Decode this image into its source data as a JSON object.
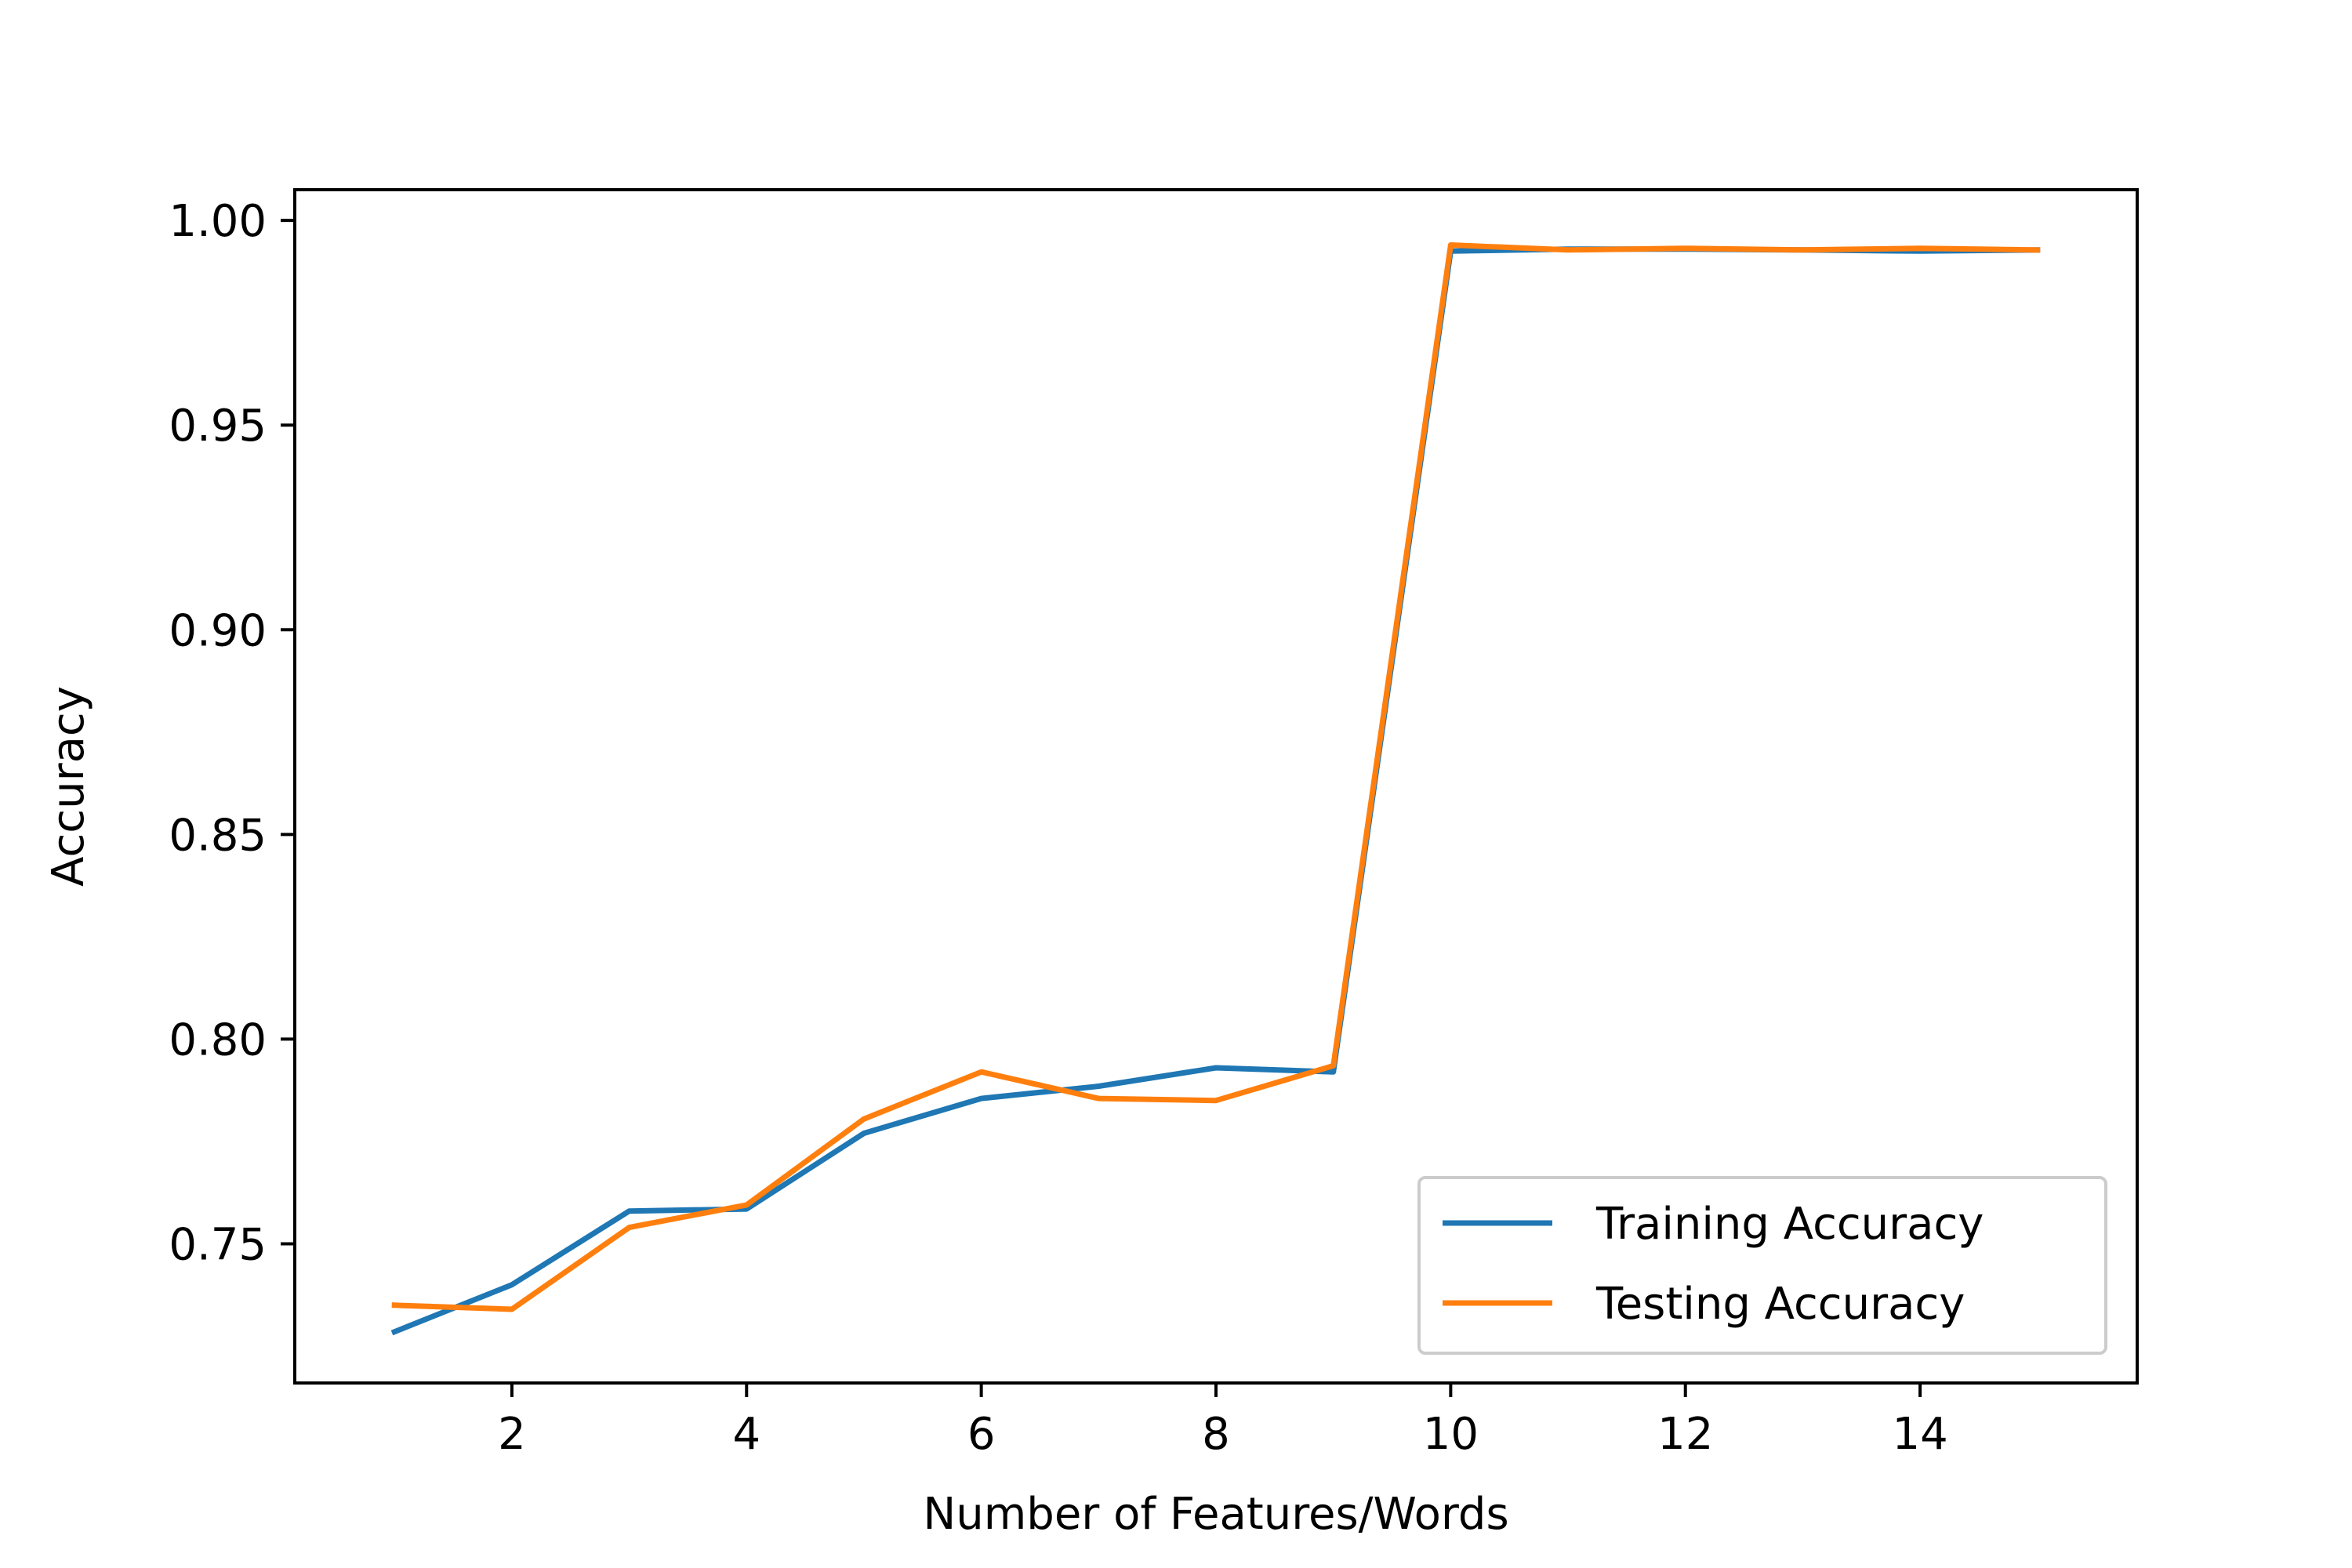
{
  "chart_data": {
    "type": "line",
    "xlabel": "Number of Features/Words",
    "ylabel": "Accuracy",
    "xlim": [
      0.15,
      15.85
    ],
    "ylim": [
      0.716,
      1.0075
    ],
    "xticks": [
      2,
      4,
      6,
      8,
      10,
      12,
      14
    ],
    "xtick_labels": [
      "2",
      "4",
      "6",
      "8",
      "10",
      "12",
      "14"
    ],
    "yticks": [
      0.75,
      0.8,
      0.85,
      0.9,
      0.95,
      1.0
    ],
    "ytick_labels": [
      "0.75",
      "0.80",
      "0.85",
      "0.90",
      "0.95",
      "1.00"
    ],
    "grid": false,
    "legend_position": "lower-right",
    "series": [
      {
        "name": "Training Accuracy",
        "color": "#1f77b4",
        "x": [
          1,
          2,
          3,
          4,
          5,
          6,
          7,
          8,
          9,
          10,
          11,
          12,
          13,
          14,
          15
        ],
        "y": [
          0.7285,
          0.74,
          0.758,
          0.7585,
          0.777,
          0.7855,
          0.7885,
          0.793,
          0.792,
          0.9925,
          0.993,
          0.993,
          0.9928,
          0.9925,
          0.9928
        ]
      },
      {
        "name": "Testing Accuracy",
        "color": "#ff7f0e",
        "x": [
          1,
          2,
          3,
          4,
          5,
          6,
          7,
          8,
          9,
          10,
          11,
          12,
          13,
          14,
          15
        ],
        "y": [
          0.735,
          0.734,
          0.754,
          0.7595,
          0.7805,
          0.792,
          0.7855,
          0.785,
          0.7935,
          0.994,
          0.9928,
          0.9932,
          0.9928,
          0.9932,
          0.9928
        ]
      }
    ]
  }
}
